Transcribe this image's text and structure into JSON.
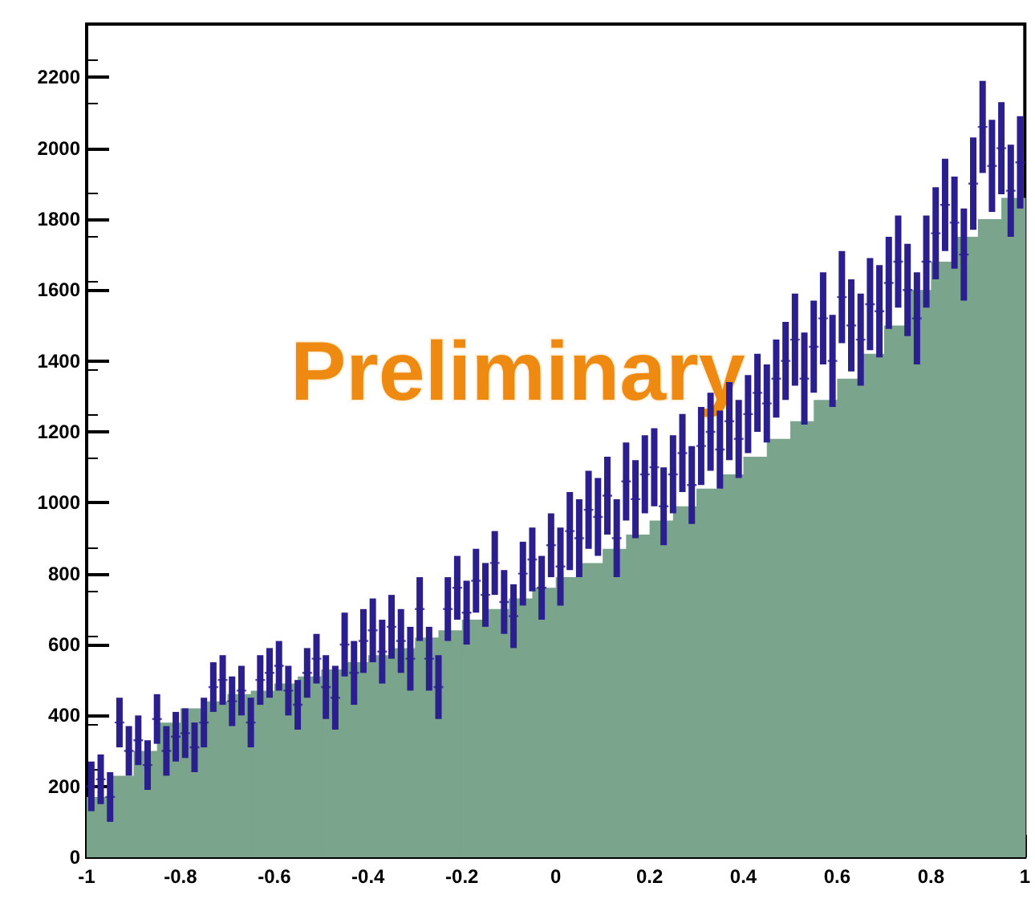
{
  "chart_data": {
    "type": "histogram",
    "annotations": [
      "Preliminary"
    ],
    "xlim": [
      -1,
      1
    ],
    "xticks": [
      -1,
      -0.8,
      -0.6,
      -0.4,
      -0.2,
      0,
      0.2,
      0.4,
      0.6,
      0.8,
      1
    ],
    "ylim": [
      0,
      2350
    ],
    "yticks": [
      0,
      200,
      400,
      600,
      800,
      1000,
      1200,
      1400,
      1600,
      1800,
      2000,
      2200
    ],
    "grid": false,
    "series": [
      {
        "color": "#7aa58c",
        "bins": [
          -1,
          -0.95,
          -0.9,
          -0.85,
          -0.8,
          -0.75,
          -0.7,
          -0.65,
          -0.6,
          -0.55,
          -0.5,
          -0.45,
          -0.4,
          -0.35,
          -0.3,
          -0.25,
          -0.2,
          -0.15,
          -0.1,
          -0.05,
          0,
          0.05,
          0.1,
          0.15,
          0.2,
          0.25,
          0.3,
          0.35,
          0.4,
          0.45,
          0.5,
          0.55,
          0.6,
          0.65,
          0.7,
          0.75,
          0.8,
          0.85,
          0.9,
          0.95,
          1
        ],
        "values": [
          170,
          230,
          300,
          380,
          420,
          440,
          460,
          470,
          490,
          510,
          530,
          550,
          570,
          590,
          620,
          640,
          670,
          700,
          730,
          760,
          790,
          830,
          870,
          910,
          950,
          990,
          1040,
          1080,
          1130,
          1180,
          1230,
          1290,
          1350,
          1420,
          1500,
          1600,
          1680,
          1750,
          1800,
          1860
        ]
      },
      {
        "type": "scatter",
        "color": "#2b1e8f",
        "marker": "cross",
        "x": [
          -0.99,
          -0.97,
          -0.95,
          -0.93,
          -0.91,
          -0.89,
          -0.87,
          -0.85,
          -0.83,
          -0.81,
          -0.79,
          -0.77,
          -0.75,
          -0.73,
          -0.71,
          -0.69,
          -0.67,
          -0.65,
          -0.63,
          -0.61,
          -0.59,
          -0.57,
          -0.55,
          -0.53,
          -0.51,
          -0.49,
          -0.47,
          -0.45,
          -0.43,
          -0.41,
          -0.39,
          -0.37,
          -0.35,
          -0.33,
          -0.31,
          -0.29,
          -0.27,
          -0.25,
          -0.23,
          -0.21,
          -0.19,
          -0.17,
          -0.15,
          -0.13,
          -0.11,
          -0.09,
          -0.07,
          -0.05,
          -0.03,
          -0.01,
          0.01,
          0.03,
          0.05,
          0.07,
          0.09,
          0.11,
          0.13,
          0.15,
          0.17,
          0.19,
          0.21,
          0.23,
          0.25,
          0.27,
          0.29,
          0.31,
          0.33,
          0.35,
          0.37,
          0.39,
          0.41,
          0.43,
          0.45,
          0.47,
          0.49,
          0.51,
          0.53,
          0.55,
          0.57,
          0.59,
          0.61,
          0.63,
          0.65,
          0.67,
          0.69,
          0.71,
          0.73,
          0.75,
          0.77,
          0.79,
          0.81,
          0.83,
          0.85,
          0.87,
          0.89,
          0.91,
          0.93,
          0.95,
          0.97,
          0.99
        ],
        "values": [
          200,
          220,
          170,
          380,
          300,
          330,
          260,
          390,
          300,
          340,
          350,
          310,
          380,
          480,
          500,
          440,
          470,
          380,
          500,
          520,
          540,
          470,
          430,
          520,
          560,
          480,
          450,
          600,
          520,
          610,
          640,
          580,
          650,
          610,
          560,
          700,
          560,
          480,
          700,
          760,
          690,
          780,
          740,
          830,
          720,
          680,
          800,
          840,
          760,
          880,
          820,
          920,
          900,
          980,
          960,
          1020,
          900,
          1060,
          1010,
          1080,
          1100,
          990,
          1080,
          1140,
          1050,
          1160,
          1200,
          1150,
          1230,
          1180,
          1250,
          1310,
          1280,
          1350,
          1400,
          1460,
          1350,
          1440,
          1520,
          1400,
          1580,
          1500,
          1460,
          1560,
          1540,
          1620,
          1680,
          1600,
          1520,
          1680,
          1760,
          1840,
          1790,
          1700,
          1900,
          2060,
          1950,
          2000,
          1880,
          1960
        ],
        "errors": [
          70,
          70,
          70,
          70,
          70,
          70,
          70,
          70,
          70,
          70,
          70,
          70,
          70,
          70,
          70,
          70,
          70,
          70,
          70,
          70,
          70,
          70,
          70,
          70,
          70,
          90,
          90,
          90,
          90,
          90,
          90,
          90,
          90,
          90,
          90,
          90,
          90,
          90,
          90,
          90,
          90,
          90,
          90,
          90,
          90,
          90,
          90,
          90,
          90,
          90,
          110,
          110,
          110,
          110,
          110,
          110,
          110,
          110,
          110,
          110,
          110,
          110,
          110,
          110,
          110,
          110,
          110,
          110,
          110,
          110,
          110,
          110,
          110,
          110,
          110,
          130,
          130,
          130,
          130,
          130,
          130,
          130,
          130,
          130,
          130,
          130,
          130,
          130,
          130,
          130,
          130,
          130,
          130,
          130,
          130,
          130,
          130,
          130,
          130,
          130
        ]
      }
    ]
  }
}
